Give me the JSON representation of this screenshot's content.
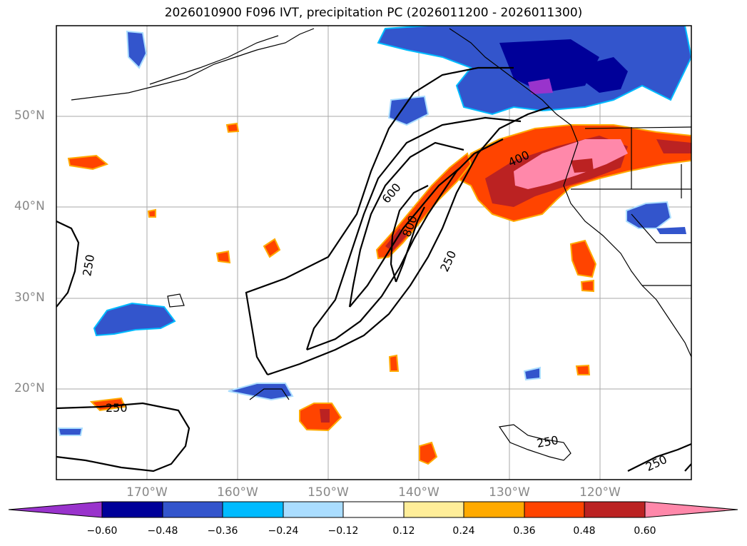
{
  "title": "2026010900 F096 IVT, precipitation PC (2026011200 - 2026011300)",
  "lat_labels": [
    "50°N",
    "40°N",
    "30°N",
    "20°N"
  ],
  "lon_labels": [
    "170°W",
    "160°W",
    "150°W",
    "140°W",
    "130°W",
    "120°W"
  ],
  "contour_labels": [
    "250",
    "250",
    "250",
    "250",
    "250",
    "400",
    "600",
    "800"
  ],
  "colorbar": {
    "colors": [
      "#9933cc",
      "#000099",
      "#3355cc",
      "#00bbff",
      "#aaddff",
      "#ffffff",
      "#ffee99",
      "#ffaa00",
      "#ff4400",
      "#bb2222",
      "#ff88aa"
    ],
    "ticks": [
      "−0.60",
      "−0.48",
      "−0.36",
      "−0.24",
      "−0.12",
      "0.12",
      "0.24",
      "0.36",
      "0.48",
      "0.60"
    ]
  }
}
